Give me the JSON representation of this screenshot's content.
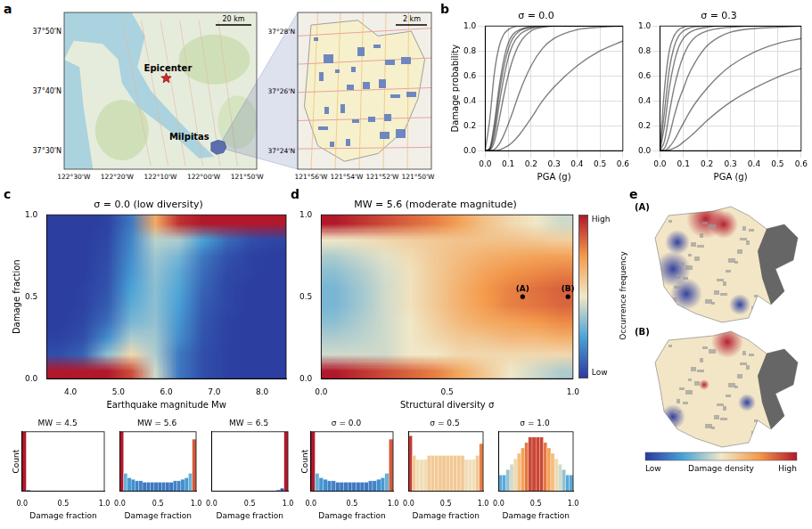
{
  "panel_letters": [
    "a",
    "b",
    "c",
    "d",
    "e"
  ],
  "map_a": {
    "overview": {
      "markers": [
        {
          "label": "Epicenter"
        },
        {
          "label": "Milpitas"
        }
      ],
      "scale_bar": "20 km",
      "lat_ticks": [
        "37°50'N",
        "37°40'N",
        "37°30'N"
      ],
      "lon_ticks": [
        "122°30'W",
        "122°20'W",
        "122°10'W",
        "122°00'W",
        "121°50'W"
      ]
    },
    "inset": {
      "scale_bar": "2 km",
      "lat_ticks": [
        "37°28'N",
        "37°26'N",
        "37°24'N"
      ],
      "lon_ticks": [
        "121°56'W",
        "121°54'W",
        "121°52'W",
        "121°50'W"
      ]
    }
  },
  "chart_data": [
    {
      "type": "line",
      "title": "σ = 0.0",
      "x_label": "PGA (g)",
      "y_label": "Damage probability",
      "grid": true,
      "x": [
        0,
        0.02,
        0.04,
        0.06,
        0.08,
        0.1,
        0.12,
        0.15,
        0.2,
        0.25,
        0.3,
        0.4,
        0.5,
        0.6
      ],
      "series": [
        {
          "color": "#000000",
          "values": [
            0,
            0.02,
            0.22,
            0.5,
            0.72,
            0.86,
            0.93,
            0.97,
            0.995,
            1,
            1,
            1,
            1,
            1
          ]
        },
        {
          "color": "#000000",
          "values": [
            0,
            0.01,
            0.12,
            0.36,
            0.57,
            0.74,
            0.85,
            0.93,
            0.98,
            0.995,
            1,
            1,
            1,
            1
          ]
        },
        {
          "color": "#000000",
          "values": [
            0,
            0.005,
            0.07,
            0.24,
            0.43,
            0.6,
            0.73,
            0.86,
            0.96,
            0.99,
            1,
            1,
            1,
            1
          ]
        },
        {
          "color": "#000000",
          "values": [
            0,
            0,
            0.01,
            0.05,
            0.12,
            0.21,
            0.31,
            0.47,
            0.68,
            0.82,
            0.9,
            0.97,
            0.99,
            1
          ]
        },
        {
          "color": "#000000",
          "values": [
            0,
            0,
            0,
            0.005,
            0.02,
            0.04,
            0.07,
            0.13,
            0.26,
            0.4,
            0.51,
            0.68,
            0.8,
            0.88
          ]
        },
        {
          "color": "#000000",
          "values": [
            0,
            0.25,
            0.62,
            0.83,
            0.93,
            0.97,
            0.99,
            1,
            1,
            1,
            1,
            1,
            1,
            1
          ]
        },
        {
          "color": "#000000",
          "values": [
            0,
            0.015,
            0.17,
            0.44,
            0.66,
            0.81,
            0.9,
            0.96,
            0.99,
            1,
            1,
            1,
            1,
            1
          ]
        }
      ],
      "xlim": [
        0,
        0.6
      ],
      "xticks": [
        {
          "value": 0,
          "label": "0.0"
        },
        0.1,
        0.2,
        0.3,
        0.4,
        0.5,
        0.6
      ],
      "ylim": [
        0,
        1
      ],
      "yticks": [
        {
          "value": 0,
          "label": "0.0"
        },
        0.2,
        0.4,
        0.6,
        0.8,
        {
          "value": 1,
          "label": "1.0"
        }
      ]
    },
    {
      "type": "line",
      "title": "σ = 0.3",
      "x_label": "PGA (g)",
      "grid": true,
      "x": [
        0,
        0.02,
        0.04,
        0.06,
        0.08,
        0.1,
        0.12,
        0.15,
        0.2,
        0.25,
        0.3,
        0.4,
        0.5,
        0.6
      ],
      "series": [
        {
          "color": "#000000",
          "values": [
            0,
            0.5,
            0.8,
            0.92,
            0.97,
            0.99,
            1,
            1,
            1,
            1,
            1,
            1,
            1,
            1
          ]
        },
        {
          "color": "#000000",
          "values": [
            0,
            0.2,
            0.5,
            0.7,
            0.83,
            0.9,
            0.94,
            0.97,
            0.99,
            1,
            1,
            1,
            1,
            1
          ]
        },
        {
          "color": "#000000",
          "values": [
            0,
            0.08,
            0.3,
            0.5,
            0.65,
            0.76,
            0.84,
            0.91,
            0.96,
            0.98,
            0.99,
            1,
            1,
            1
          ]
        },
        {
          "color": "#000000",
          "values": [
            0,
            0.02,
            0.12,
            0.27,
            0.4,
            0.5,
            0.6,
            0.71,
            0.84,
            0.91,
            0.95,
            0.98,
            0.99,
            1
          ]
        },
        {
          "color": "#000000",
          "values": [
            0,
            0,
            0.03,
            0.08,
            0.15,
            0.22,
            0.29,
            0.38,
            0.5,
            0.6,
            0.68,
            0.79,
            0.86,
            0.9
          ]
        },
        {
          "color": "#000000",
          "values": [
            0,
            0,
            0.005,
            0.02,
            0.04,
            0.07,
            0.1,
            0.15,
            0.24,
            0.32,
            0.39,
            0.5,
            0.59,
            0.66
          ]
        },
        {
          "color": "#000000",
          "values": [
            0,
            0.32,
            0.65,
            0.83,
            0.92,
            0.96,
            0.98,
            0.995,
            1,
            1,
            1,
            1,
            1,
            1
          ]
        }
      ],
      "xlim": [
        0,
        0.6
      ],
      "xticks": [
        {
          "value": 0,
          "label": "0.0"
        },
        0.1,
        0.2,
        0.3,
        0.4,
        0.5,
        0.6
      ],
      "ylim": [
        0,
        1
      ],
      "yticks": [
        {
          "value": 0,
          "label": "0.0"
        },
        0.2,
        0.4,
        0.6,
        0.8,
        {
          "value": 1,
          "label": "1.0"
        }
      ]
    },
    {
      "type": "heatmap",
      "title": "σ = 0.0 (low diversity)",
      "x_label": "Earthquake magnitude Mw",
      "y_label": "Damage fraction",
      "x_bins": [
        3.5,
        4,
        4.5,
        5,
        5.5,
        6,
        6.5,
        7,
        7.5,
        8,
        8.5
      ],
      "y_bins": [
        0,
        0.1,
        0.2,
        0.3,
        0.4,
        0.5,
        0.6,
        0.7,
        0.8,
        0.9,
        1
      ],
      "cells": [
        [
          1,
          1,
          1,
          0.9,
          0.45,
          0.15,
          0.05,
          0.02,
          0.01,
          0.01
        ],
        [
          0.05,
          0.1,
          0.35,
          0.55,
          0.4,
          0.15,
          0.05,
          0.02,
          0.01,
          0.01
        ],
        [
          0.02,
          0.05,
          0.2,
          0.4,
          0.38,
          0.2,
          0.06,
          0.02,
          0.01,
          0.01
        ],
        [
          0.01,
          0.03,
          0.12,
          0.32,
          0.36,
          0.22,
          0.07,
          0.02,
          0.01,
          0.01
        ],
        [
          0.01,
          0.02,
          0.08,
          0.28,
          0.35,
          0.24,
          0.08,
          0.03,
          0.01,
          0.01
        ],
        [
          0.01,
          0.02,
          0.06,
          0.25,
          0.35,
          0.26,
          0.1,
          0.03,
          0.01,
          0.01
        ],
        [
          0.01,
          0.01,
          0.05,
          0.22,
          0.36,
          0.28,
          0.12,
          0.04,
          0.02,
          0.01
        ],
        [
          0.01,
          0.01,
          0.04,
          0.2,
          0.38,
          0.32,
          0.15,
          0.06,
          0.02,
          0.01
        ],
        [
          0.01,
          0.01,
          0.03,
          0.18,
          0.42,
          0.4,
          0.25,
          0.12,
          0.05,
          0.03
        ],
        [
          0.01,
          0.01,
          0.02,
          0.15,
          0.7,
          0.95,
          1,
          1,
          1,
          1
        ]
      ],
      "xlim": [
        3.5,
        8.5
      ],
      "xticks": [
        {
          "value": 4,
          "label": "4.0"
        },
        {
          "value": 5,
          "label": "5.0"
        },
        {
          "value": 6,
          "label": "6.0"
        },
        {
          "value": 7,
          "label": "7.0"
        },
        {
          "value": 8,
          "label": "8.0"
        }
      ],
      "ylim": [
        0,
        1
      ],
      "yticks": [
        {
          "value": 0,
          "label": "0.0"
        },
        0.5,
        {
          "value": 1,
          "label": "1.0"
        }
      ]
    },
    {
      "type": "heatmap",
      "title": "MW = 5.6 (moderate magnitude)",
      "x_label": "Structural diversity σ",
      "x_bins": [
        0,
        0.1,
        0.2,
        0.3,
        0.4,
        0.5,
        0.6,
        0.7,
        0.8,
        0.9,
        1
      ],
      "y_bins": [
        0,
        0.1,
        0.2,
        0.3,
        0.4,
        0.5,
        0.6,
        0.7,
        0.8,
        0.9,
        1
      ],
      "cells": [
        [
          1,
          0.95,
          0.9,
          0.85,
          0.8,
          0.7,
          0.6,
          0.5,
          0.45,
          0.4
        ],
        [
          0.45,
          0.45,
          0.45,
          0.5,
          0.5,
          0.55,
          0.55,
          0.55,
          0.55,
          0.55
        ],
        [
          0.4,
          0.42,
          0.45,
          0.5,
          0.55,
          0.6,
          0.62,
          0.65,
          0.65,
          0.68
        ],
        [
          0.35,
          0.4,
          0.45,
          0.5,
          0.58,
          0.65,
          0.7,
          0.72,
          0.75,
          0.78
        ],
        [
          0.32,
          0.38,
          0.45,
          0.52,
          0.6,
          0.68,
          0.74,
          0.8,
          0.82,
          0.85
        ],
        [
          0.32,
          0.38,
          0.45,
          0.52,
          0.6,
          0.68,
          0.75,
          0.8,
          0.83,
          0.86
        ],
        [
          0.35,
          0.4,
          0.46,
          0.52,
          0.6,
          0.66,
          0.72,
          0.76,
          0.78,
          0.8
        ],
        [
          0.4,
          0.44,
          0.48,
          0.54,
          0.6,
          0.64,
          0.68,
          0.7,
          0.72,
          0.72
        ],
        [
          0.5,
          0.52,
          0.55,
          0.58,
          0.6,
          0.62,
          0.62,
          0.62,
          0.6,
          0.58
        ],
        [
          1,
          0.95,
          0.9,
          0.85,
          0.8,
          0.72,
          0.62,
          0.55,
          0.5,
          0.45
        ]
      ],
      "annotations": [
        {
          "label": "(A)",
          "x": 0.8,
          "y": 0.5
        },
        {
          "label": "(B)",
          "x": 0.98,
          "y": 0.5
        }
      ],
      "colorbar": {
        "label": "Occurrence frequency",
        "range": [
          0,
          1
        ],
        "ticks": [
          {
            "value": 1,
            "label": "High"
          },
          {
            "value": 0,
            "label": "Low"
          }
        ]
      },
      "xlim": [
        0,
        1
      ],
      "xticks": [
        {
          "value": 0,
          "label": "0.0"
        },
        0.5,
        {
          "value": 1,
          "label": "1.0"
        }
      ],
      "ylim": [
        0,
        1
      ],
      "yticks": [
        {
          "value": 0,
          "label": "0.0"
        },
        0.5,
        {
          "value": 1,
          "label": "1.0"
        }
      ]
    },
    {
      "type": "histogram",
      "title": "MW = 4.5",
      "x_label": "Damage fraction",
      "y_label": "Count",
      "tick_labels": "x",
      "bins": [
        0,
        0.05,
        0.1,
        0.15,
        0.2,
        0.25,
        0.3,
        0.35,
        0.4,
        0.45,
        0.5,
        0.55,
        0.6,
        0.65,
        0.7,
        0.75,
        0.8,
        0.85,
        0.9,
        0.95,
        1
      ],
      "values": [
        100,
        2,
        1,
        0.5,
        0.3,
        0.2,
        0.1,
        0.1,
        0.1,
        0,
        0,
        0,
        0,
        0,
        0,
        0,
        0,
        0,
        0,
        0
      ],
      "xlim": [
        0,
        1
      ],
      "xticks": [
        {
          "value": 0,
          "label": "0.0"
        },
        0.5,
        {
          "value": 1,
          "label": "1.0"
        }
      ],
      "ylim": [
        0,
        100
      ]
    },
    {
      "type": "histogram",
      "title": "MW = 5.6",
      "x_label": "Damage fraction",
      "tick_labels": "x",
      "bins": [
        0,
        0.05,
        0.1,
        0.15,
        0.2,
        0.25,
        0.3,
        0.35,
        0.4,
        0.45,
        0.5,
        0.55,
        0.6,
        0.65,
        0.7,
        0.75,
        0.8,
        0.85,
        0.9,
        0.95,
        1
      ],
      "values": [
        40,
        12,
        9,
        8,
        7,
        7,
        6,
        6,
        6,
        6,
        6,
        6,
        6,
        6,
        7,
        7,
        8,
        9,
        12,
        35
      ],
      "xlim": [
        0,
        1
      ],
      "xticks": [
        {
          "value": 0,
          "label": "0.0"
        },
        0.5,
        {
          "value": 1,
          "label": "1.0"
        }
      ],
      "ylim": [
        0,
        40
      ]
    },
    {
      "type": "histogram",
      "title": "MW = 6.5",
      "x_label": "Damage fraction",
      "tick_labels": "x",
      "bins": [
        0,
        0.05,
        0.1,
        0.15,
        0.2,
        0.25,
        0.3,
        0.35,
        0.4,
        0.45,
        0.5,
        0.55,
        0.6,
        0.65,
        0.7,
        0.75,
        0.8,
        0.85,
        0.9,
        0.95,
        1
      ],
      "values": [
        0,
        0,
        0,
        0,
        0,
        0,
        0,
        0,
        0,
        0,
        0,
        0.1,
        0.1,
        0.2,
        0.3,
        0.5,
        1,
        2,
        5,
        100
      ],
      "xlim": [
        0,
        1
      ],
      "xticks": [
        {
          "value": 0,
          "label": "0.0"
        },
        0.5,
        {
          "value": 1,
          "label": "1.0"
        }
      ],
      "ylim": [
        0,
        100
      ]
    },
    {
      "type": "histogram",
      "title": "σ = 0.0",
      "x_label": "Damage fraction",
      "y_label": "Count",
      "tick_labels": "x",
      "bins": [
        0,
        0.05,
        0.1,
        0.15,
        0.2,
        0.25,
        0.3,
        0.35,
        0.4,
        0.45,
        0.5,
        0.55,
        0.6,
        0.65,
        0.7,
        0.75,
        0.8,
        0.85,
        0.9,
        0.95,
        1
      ],
      "values": [
        40,
        12,
        9,
        8,
        7,
        7,
        6,
        6,
        6,
        6,
        6,
        6,
        6,
        6,
        7,
        7,
        8,
        9,
        12,
        35
      ],
      "xlim": [
        0,
        1
      ],
      "xticks": [
        {
          "value": 0,
          "label": "0.0"
        },
        0.5,
        {
          "value": 1,
          "label": "1.0"
        }
      ],
      "ylim": [
        0,
        40
      ]
    },
    {
      "type": "histogram",
      "title": "σ = 0.5",
      "x_label": "Damage fraction",
      "tick_labels": "x",
      "bins": [
        0,
        0.05,
        0.1,
        0.15,
        0.2,
        0.25,
        0.3,
        0.35,
        0.4,
        0.45,
        0.5,
        0.55,
        0.6,
        0.65,
        0.7,
        0.75,
        0.8,
        0.85,
        0.9,
        0.95,
        1
      ],
      "values": [
        14,
        9,
        8,
        8,
        8,
        9,
        9,
        9,
        9,
        9,
        9,
        9,
        9,
        9,
        9,
        8,
        8,
        8,
        9,
        12
      ],
      "xlim": [
        0,
        1
      ],
      "xticks": [
        {
          "value": 0,
          "label": "0.0"
        },
        0.5,
        {
          "value": 1,
          "label": "1.0"
        }
      ],
      "ylim": [
        0,
        15
      ]
    },
    {
      "type": "histogram",
      "title": "σ = 1.0",
      "x_label": "Damage fraction",
      "tick_labels": "x",
      "bins": [
        0,
        0.05,
        0.1,
        0.15,
        0.2,
        0.25,
        0.3,
        0.35,
        0.4,
        0.45,
        0.5,
        0.55,
        0.6,
        0.65,
        0.7,
        0.75,
        0.8,
        0.85,
        0.9,
        0.95,
        1
      ],
      "values": [
        3,
        3,
        4,
        5,
        6,
        7,
        8,
        9,
        10,
        10,
        10,
        10,
        9,
        8,
        7,
        6,
        5,
        4,
        3,
        3
      ],
      "xlim": [
        0,
        1
      ],
      "xticks": [
        {
          "value": 0,
          "label": "0.0"
        },
        0.5,
        {
          "value": 1,
          "label": "1.0"
        }
      ],
      "ylim": [
        0,
        11
      ]
    }
  ],
  "map_e": {
    "maps": [
      {
        "label": "(A)"
      },
      {
        "label": "(B)"
      }
    ],
    "colorbar": {
      "label": "Damage density",
      "range": [
        0,
        1
      ],
      "ticks": [
        {
          "value": 0,
          "label": "Low"
        },
        {
          "value": 1,
          "label": "High"
        }
      ]
    }
  }
}
